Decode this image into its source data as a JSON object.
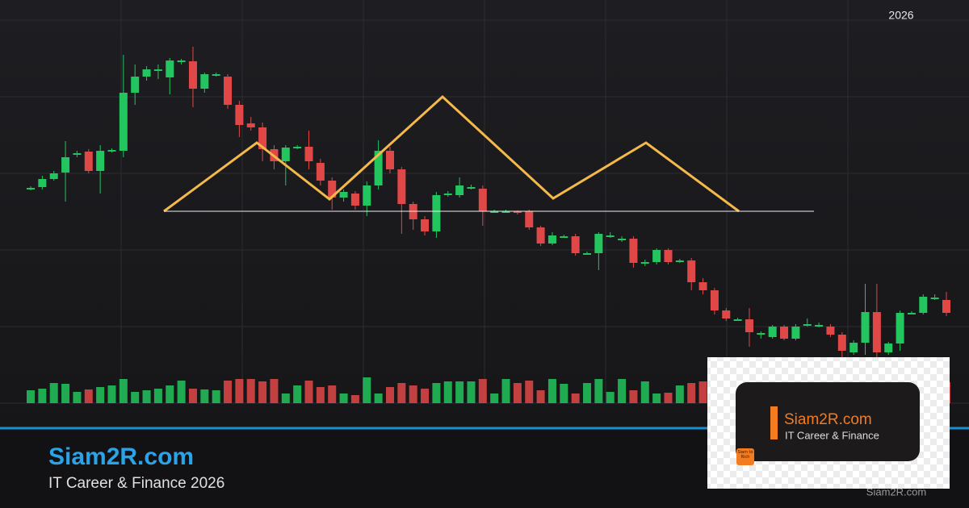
{
  "header": {
    "year": "2026"
  },
  "chart_data": {
    "type": "candlestick",
    "ylim": [
      0,
      500
    ],
    "open": [
      267,
      268,
      278,
      286,
      309,
      312,
      288,
      313,
      313,
      385,
      405,
      414,
      404,
      424,
      424,
      390,
      408,
      405,
      370,
      347,
      342,
      315,
      300,
      318,
      318,
      298,
      276,
      255,
      260,
      245,
      270,
      313,
      290,
      247,
      228,
      213,
      258,
      258,
      268,
      266,
      238,
      238,
      238,
      238,
      218,
      198,
      207,
      207,
      186,
      186,
      208,
      204,
      204,
      175,
      175,
      190,
      177,
      177,
      150,
      140,
      115,
      104,
      104,
      87,
      82,
      95,
      80,
      98,
      97,
      95,
      85,
      63,
      75,
      113,
      63,
      74,
      112,
      112,
      131,
      128
    ],
    "high": [
      269,
      282,
      288,
      325,
      313,
      315,
      320,
      316,
      432,
      420,
      418,
      420,
      428,
      427,
      442,
      410,
      410,
      408,
      375,
      355,
      348,
      320,
      320,
      320,
      338,
      303,
      280,
      265,
      263,
      275,
      326,
      318,
      293,
      250,
      232,
      262,
      263,
      280,
      271,
      270,
      240,
      240,
      239,
      240,
      220,
      212,
      209,
      210,
      188,
      212,
      212,
      207,
      207,
      178,
      192,
      192,
      179,
      180,
      155,
      143,
      118,
      106,
      118,
      89,
      97,
      97,
      98,
      105,
      100,
      98,
      88,
      78,
      148,
      148,
      76,
      115,
      114,
      135,
      135,
      138
    ],
    "low": [
      264,
      265,
      276,
      250,
      305,
      285,
      260,
      311,
      305,
      370,
      400,
      402,
      383,
      420,
      367,
      385,
      405,
      365,
      330,
      338,
      300,
      290,
      270,
      315,
      290,
      270,
      240,
      250,
      240,
      232,
      265,
      285,
      210,
      215,
      208,
      205,
      256,
      255,
      265,
      220,
      236,
      236,
      234,
      215,
      195,
      196,
      205,
      183,
      184,
      165,
      205,
      200,
      168,
      170,
      172,
      172,
      174,
      140,
      135,
      110,
      102,
      102,
      70,
      80,
      80,
      78,
      78,
      95,
      94,
      82,
      55,
      60,
      60,
      50,
      60,
      65,
      110,
      110,
      128,
      108
    ],
    "close": [
      267,
      278,
      285,
      305,
      310,
      288,
      313,
      314,
      385,
      405,
      414,
      414,
      425,
      425,
      390,
      408,
      408,
      370,
      345,
      342,
      315,
      300,
      317,
      318,
      300,
      276,
      255,
      262,
      245,
      270,
      313,
      290,
      247,
      228,
      213,
      258,
      260,
      270,
      268,
      238,
      238,
      238,
      237,
      218,
      198,
      208,
      207,
      186,
      186,
      210,
      208,
      204,
      174,
      175,
      190,
      175,
      177,
      150,
      140,
      115,
      105,
      104,
      88,
      87,
      95,
      80,
      95,
      98,
      97,
      85,
      65,
      75,
      113,
      63,
      74,
      112,
      112,
      132,
      131,
      112
    ],
    "volume": [
      16,
      18,
      25,
      24,
      14,
      17,
      20,
      22,
      30,
      14,
      16,
      18,
      22,
      28,
      18,
      17,
      16,
      28,
      30,
      30,
      27,
      30,
      12,
      22,
      28,
      20,
      22,
      12,
      10,
      32,
      12,
      20,
      25,
      22,
      18,
      25,
      27,
      27,
      27,
      30,
      12,
      30,
      25,
      28,
      16,
      30,
      24,
      12,
      25,
      30,
      14,
      30,
      16,
      27,
      12,
      13,
      22,
      25,
      27,
      30,
      28,
      20,
      22,
      25,
      18,
      22,
      24,
      18,
      20,
      16,
      25,
      22,
      28,
      30,
      20,
      18,
      22,
      24,
      18,
      26
    ],
    "volume_ylim": [
      0,
      100
    ],
    "up_color": "#22c55e",
    "down_color": "#e04848"
  },
  "footer": {
    "title": "Siam2R.com",
    "subtitle": "IT Career & Finance 2026",
    "watermark": "Siam2R.com"
  },
  "logo": {
    "title": "Siam2R.com",
    "subtitle": "IT Career & Finance",
    "icon_text": "Siam to Rich"
  }
}
